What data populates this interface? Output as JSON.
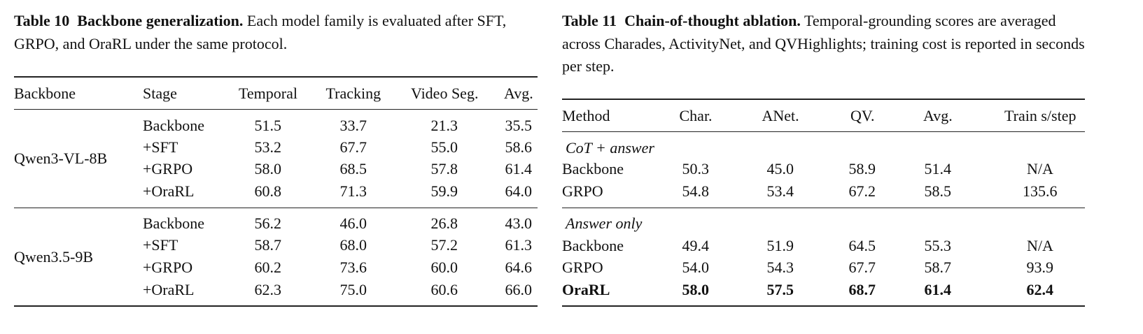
{
  "table10": {
    "label": "Table 10",
    "title": "Backbone generalization.",
    "caption": "Each model family is evaluated after SFT, GRPO, and OraRL under the same protocol.",
    "columns": [
      "Backbone",
      "Stage",
      "Temporal",
      "Tracking",
      "Video Seg.",
      "Avg."
    ],
    "groups": [
      {
        "name": "Qwen3-VL-8B",
        "rows": [
          [
            "Backbone",
            "51.5",
            "33.7",
            "21.3",
            "35.5"
          ],
          [
            "+SFT",
            "53.2",
            "67.7",
            "55.0",
            "58.6"
          ],
          [
            "+GRPO",
            "58.0",
            "68.5",
            "57.8",
            "61.4"
          ],
          [
            "+OraRL",
            "60.8",
            "71.3",
            "59.9",
            "64.0"
          ]
        ]
      },
      {
        "name": "Qwen3.5-9B",
        "rows": [
          [
            "Backbone",
            "56.2",
            "46.0",
            "26.8",
            "43.0"
          ],
          [
            "+SFT",
            "58.7",
            "68.0",
            "57.2",
            "61.3"
          ],
          [
            "+GRPO",
            "60.2",
            "73.6",
            "60.0",
            "64.6"
          ],
          [
            "+OraRL",
            "62.3",
            "75.0",
            "60.6",
            "66.0"
          ]
        ]
      }
    ]
  },
  "table11": {
    "label": "Table 11",
    "title": "Chain-of-thought ablation.",
    "caption": "Temporal-grounding scores are averaged across Charades, ActivityNet, and QVHighlights; training cost is reported in seconds per step.",
    "columns": [
      "Method",
      "Char.",
      "ANet.",
      "QV.",
      "Avg.",
      "Train s/step"
    ],
    "sections": [
      {
        "name": "CoT + answer",
        "rows": [
          [
            "Backbone",
            "50.3",
            "45.0",
            "58.9",
            "51.4",
            "N/A"
          ],
          [
            "GRPO",
            "54.8",
            "53.4",
            "67.2",
            "58.5",
            "135.6"
          ]
        ]
      },
      {
        "name": "Answer only",
        "rows": [
          [
            "Backbone",
            "49.4",
            "51.9",
            "64.5",
            "55.3",
            "N/A"
          ],
          [
            "GRPO",
            "54.0",
            "54.3",
            "67.7",
            "58.7",
            "93.9"
          ],
          [
            "OraRL",
            "58.0",
            "57.5",
            "68.7",
            "61.4",
            "62.4"
          ]
        ]
      }
    ]
  }
}
